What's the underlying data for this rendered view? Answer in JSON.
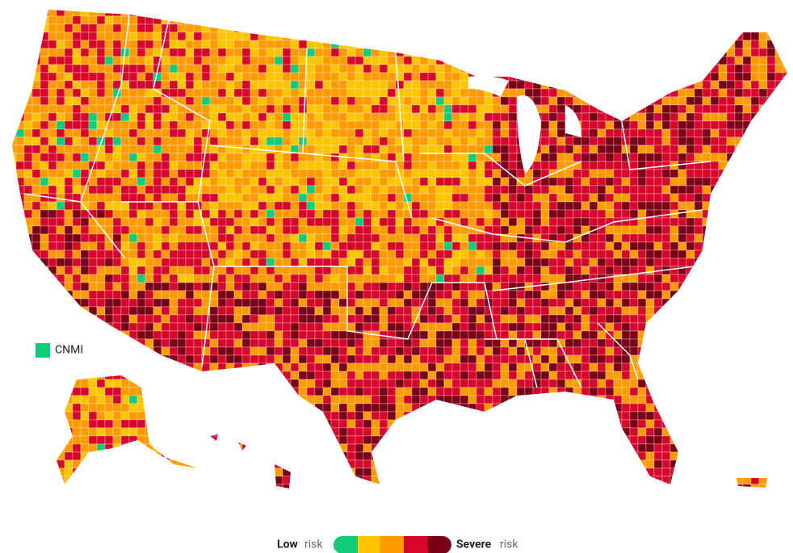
{
  "legend": {
    "low_label": "Low",
    "low_suffix": "risk",
    "high_label": "Severe",
    "high_suffix": "risk",
    "colors": [
      "#12cc78",
      "#ffc400",
      "#ff9a00",
      "#d7072c",
      "#7a0016"
    ]
  },
  "territory_labels": {
    "cnmi": "CNMI"
  }
}
